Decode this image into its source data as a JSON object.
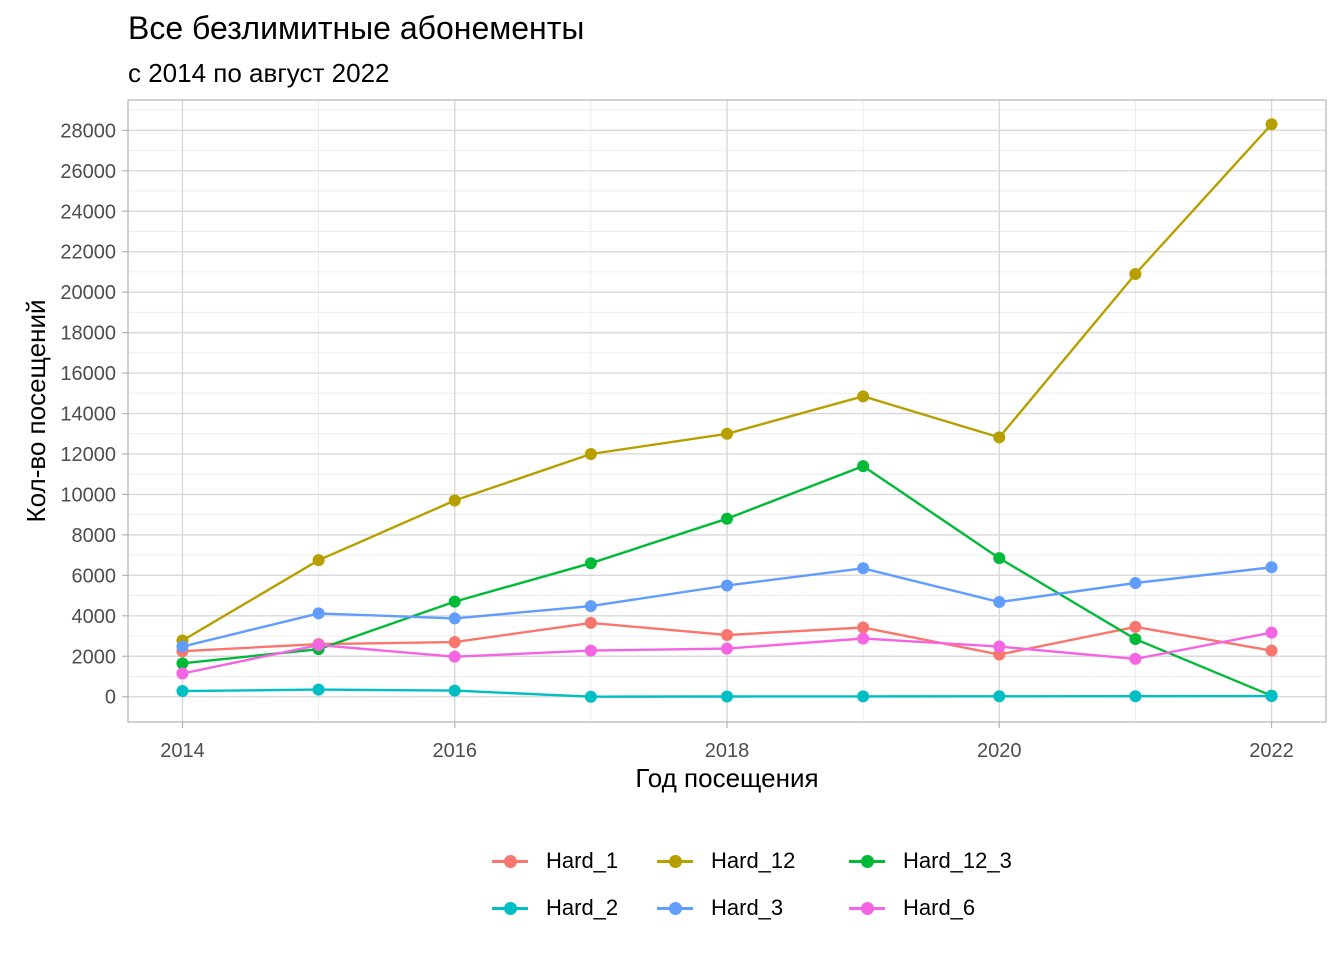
{
  "chart_data": {
    "type": "line",
    "title": "Все безлимитные абонементы",
    "subtitle": "с 2014 по август 2022",
    "xlabel": "Год посещения",
    "ylabel": "Кол-во посещений",
    "x": [
      2014,
      2015,
      2016,
      2017,
      2018,
      2019,
      2020,
      2021,
      2022
    ],
    "xlim": [
      2013.6,
      2022.4
    ],
    "ylim": [
      -1250,
      29500
    ],
    "x_ticks": [
      "2014",
      "2016",
      "2018",
      "2020",
      "2022"
    ],
    "y_ticks": [
      "0",
      "2000",
      "4000",
      "6000",
      "8000",
      "10000",
      "12000",
      "14000",
      "16000",
      "18000",
      "20000",
      "22000",
      "24000",
      "26000",
      "28000"
    ],
    "grid": true,
    "legend_position": "bottom",
    "series": [
      {
        "name": "Hard_1",
        "color": "#F8766D",
        "values": [
          2250,
          2600,
          2700,
          3650,
          3050,
          3420,
          2080,
          3450,
          2280
        ]
      },
      {
        "name": "Hard_12",
        "color": "#B79F00",
        "values": [
          2780,
          6750,
          9700,
          12000,
          13000,
          14850,
          12820,
          20900,
          28300
        ]
      },
      {
        "name": "Hard_12_3",
        "color": "#00BA38",
        "values": [
          1650,
          2350,
          4700,
          6600,
          8800,
          11400,
          6850,
          2850,
          50
        ]
      },
      {
        "name": "Hard_2",
        "color": "#00BFC4",
        "values": [
          280,
          350,
          300,
          0,
          10,
          15,
          20,
          25,
          30
        ]
      },
      {
        "name": "Hard_3",
        "color": "#619CFF",
        "values": [
          2480,
          4120,
          3870,
          4480,
          5500,
          6350,
          4680,
          5620,
          6400
        ]
      },
      {
        "name": "Hard_6",
        "color": "#F564E3",
        "values": [
          1150,
          2550,
          1980,
          2280,
          2380,
          2880,
          2480,
          1870,
          3170
        ]
      }
    ]
  }
}
